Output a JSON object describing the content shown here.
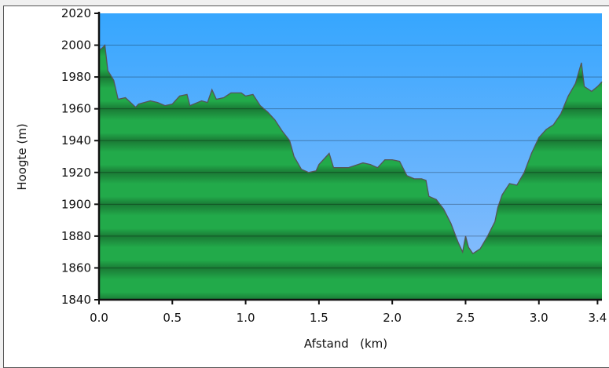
{
  "chart_data": {
    "type": "area",
    "xlabel": "Afstand   (km)",
    "ylabel": "Hoogte (m)",
    "xlim": [
      0,
      3.43
    ],
    "ylim": [
      1840,
      2020
    ],
    "xticks": [
      "0.0",
      "0.5",
      "1.0",
      "1.5",
      "2.0",
      "2.5",
      "3.0",
      "3.4"
    ],
    "yticks": [
      "1840",
      "1860",
      "1880",
      "1900",
      "1920",
      "1940",
      "1960",
      "1980",
      "2000",
      "2020"
    ],
    "grid": true,
    "colors": {
      "sky_top": "#36a6fe",
      "sky_bottom": "#90bffc",
      "fill_light": "#22aa4a",
      "fill_dark": "#1a7a35",
      "line": "#555555"
    },
    "x": [
      0,
      0.02,
      0.04,
      0.06,
      0.1,
      0.13,
      0.18,
      0.25,
      0.27,
      0.35,
      0.4,
      0.45,
      0.5,
      0.55,
      0.6,
      0.62,
      0.7,
      0.74,
      0.77,
      0.8,
      0.85,
      0.9,
      0.97,
      1.0,
      1.05,
      1.1,
      1.15,
      1.2,
      1.25,
      1.3,
      1.33,
      1.38,
      1.43,
      1.48,
      1.5,
      1.55,
      1.57,
      1.6,
      1.7,
      1.8,
      1.85,
      1.9,
      1.95,
      2.0,
      2.05,
      2.1,
      2.15,
      2.2,
      2.23,
      2.25,
      2.3,
      2.35,
      2.4,
      2.45,
      2.48,
      2.5,
      2.52,
      2.55,
      2.6,
      2.65,
      2.7,
      2.72,
      2.75,
      2.8,
      2.85,
      2.9,
      2.95,
      3.0,
      3.05,
      3.1,
      3.15,
      3.2,
      3.25,
      3.29,
      3.31,
      3.36,
      3.4,
      3.43
    ],
    "y": [
      1997,
      1998,
      2000,
      1984,
      1978,
      1966,
      1967,
      1961,
      1963,
      1965,
      1964,
      1962,
      1963,
      1968,
      1969,
      1962,
      1965,
      1964,
      1972,
      1966,
      1967,
      1970,
      1970,
      1968,
      1969,
      1962,
      1958,
      1953,
      1946,
      1940,
      1930,
      1922,
      1920,
      1921,
      1925,
      1930,
      1932,
      1923,
      1923,
      1926,
      1925,
      1923,
      1928,
      1928,
      1927,
      1918,
      1916,
      1916,
      1915,
      1905,
      1903,
      1897,
      1888,
      1876,
      1870,
      1880,
      1873,
      1869,
      1872,
      1880,
      1889,
      1898,
      1906,
      1913,
      1912,
      1920,
      1932,
      1942,
      1947,
      1950,
      1957,
      1968,
      1976,
      1989,
      1974,
      1971,
      1974,
      1977
    ]
  }
}
